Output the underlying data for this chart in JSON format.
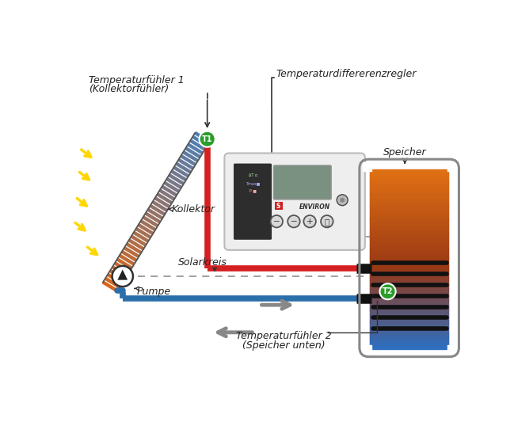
{
  "labels": {
    "temp1_line1": "Temperaturfühler 1",
    "temp1_line2": "(Kollektorfühler)",
    "temp2_line1": "Temperaturfühler 2",
    "temp2_line2": "(Speicher unten)",
    "kollektor": "Kollektor",
    "solarkreis": "Solarkreis",
    "pumpe": "Pumpe",
    "speicher": "Speicher",
    "regler": "Temperaturdiffererenzregler"
  },
  "colors": {
    "red": "#d42020",
    "blue": "#2a6faa",
    "green": "#2a9d2a",
    "yellow": "#FFD700",
    "gray_dash": "#999999",
    "gray_arrow": "#888888",
    "dark": "#222222",
    "white": "#ffffff",
    "ctrl_bg": "#f0f0f0",
    "ctrl_border": "#cccccc",
    "screen": "#7a8f7a",
    "tank_orange": "#e07020",
    "tank_blue": "#3a78b8"
  }
}
